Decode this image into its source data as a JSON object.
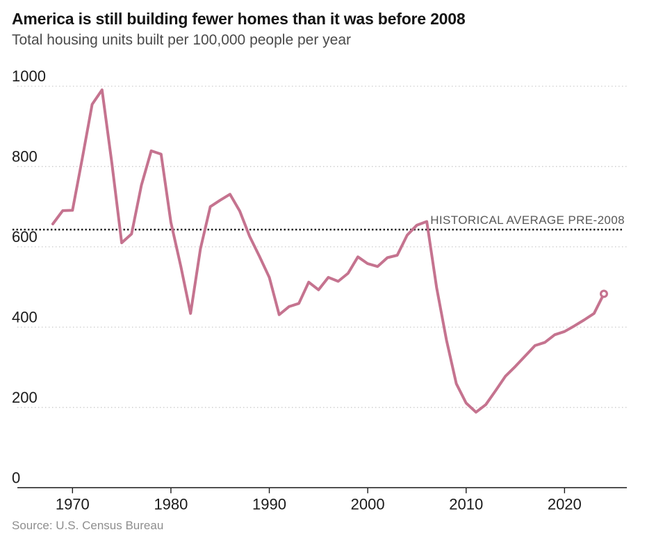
{
  "header": {
    "title": "America is still building fewer homes than it was before 2008",
    "subtitle": "Total housing units built per 100,000 people per year"
  },
  "footer": {
    "source": "Source: U.S. Census Bureau"
  },
  "colors": {
    "line": "#c5738f",
    "average_line": "#1a1a1a",
    "grid": "#c9c9c9",
    "axis": "#1a1a1a",
    "tick_label": "#1a1a1a",
    "annotation_text": "#595959",
    "title_text": "#141414",
    "subtitle_text": "#4a4a4a",
    "source_text": "#8e8e8e",
    "background": "#ffffff"
  },
  "chart_data": {
    "type": "line",
    "title": "America is still building fewer homes than it was before 2008",
    "subtitle": "Total housing units built per 100,000 people per year",
    "xlabel": "",
    "ylabel": "Housing units built per 100,000 people",
    "xlim": [
      1966.5,
      2026
    ],
    "ylim": [
      0,
      1000
    ],
    "grid": "horizontal-dotted",
    "legend": "none",
    "x_ticks": [
      1970,
      1980,
      1990,
      2000,
      2010,
      2020
    ],
    "y_ticks": [
      1000,
      800,
      600,
      400,
      200,
      0
    ],
    "x": [
      1968,
      1969,
      1970,
      1971,
      1972,
      1973,
      1974,
      1975,
      1976,
      1977,
      1978,
      1979,
      1980,
      1981,
      1982,
      1983,
      1984,
      1985,
      1986,
      1987,
      1988,
      1989,
      1990,
      1991,
      1992,
      1993,
      1994,
      1995,
      1996,
      1997,
      1998,
      1999,
      2000,
      2001,
      2002,
      2003,
      2004,
      2005,
      2006,
      2007,
      2008,
      2009,
      2010,
      2011,
      2012,
      2013,
      2014,
      2015,
      2016,
      2017,
      2018,
      2019,
      2020,
      2021,
      2022,
      2023,
      2024
    ],
    "series": [
      {
        "name": "Housing units built per 100,000 people",
        "values": [
          657,
          690,
          691,
          821,
          955,
          991,
          808,
          610,
          632,
          753,
          839,
          831,
          661,
          552,
          434,
          595,
          700,
          716,
          731,
          689,
          626,
          576,
          524,
          431,
          451,
          459,
          512,
          493,
          524,
          514,
          534,
          575,
          558,
          551,
          573,
          579,
          629,
          654,
          663,
          499,
          368,
          259,
          211,
          188,
          207,
          242,
          278,
          302,
          328,
          354,
          362,
          381,
          389,
          403,
          418,
          434,
          483
        ]
      }
    ],
    "annotations": [
      {
        "type": "hline",
        "value": 643,
        "label": "HISTORICAL AVERAGE PRE-2008",
        "style": "dotted"
      }
    ],
    "end_marker": {
      "year": 2024,
      "value": 483,
      "style": "open-circle"
    }
  }
}
